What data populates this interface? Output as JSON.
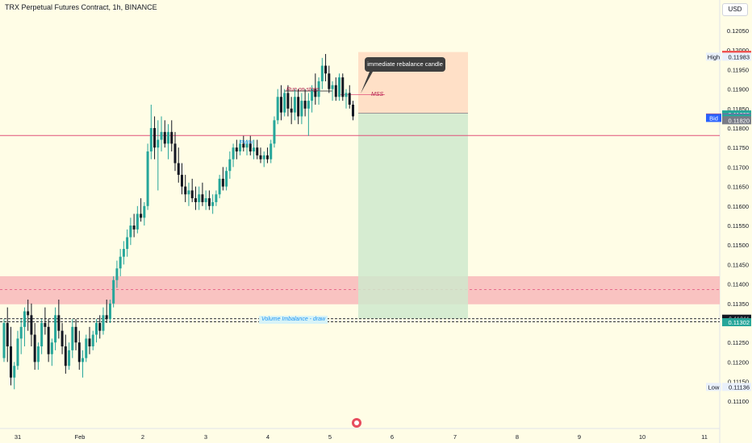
{
  "header": {
    "title": "TRX Perpetual Futures Contract, 1h, BINANCE",
    "currency": "USD"
  },
  "chart_data": {
    "type": "candlestick",
    "x_ticks": [
      "31",
      "Feb",
      "2",
      "3",
      "4",
      "5",
      "6",
      "7",
      "8",
      "9",
      "10",
      "11"
    ],
    "y_ticks": [
      "0.12050",
      "0.12000",
      "0.11950",
      "0.11900",
      "0.11850",
      "0.11800",
      "0.11750",
      "0.11700",
      "0.11650",
      "0.11600",
      "0.11550",
      "0.11500",
      "0.11450",
      "0.11400",
      "0.11350",
      "0.11300",
      "0.11250",
      "0.11200",
      "0.11150",
      "0.11100"
    ],
    "ylim": [
      0.1108,
      0.1208
    ],
    "price_tags": [
      {
        "label": "",
        "value": "0.11988",
        "color": "#ef5350"
      },
      {
        "label": "High",
        "value": "0.11983",
        "color": ""
      },
      {
        "label": "",
        "value": "0.11835",
        "color": "#26a69a"
      },
      {
        "label": "Ask",
        "value": "0.11827",
        "color": "#ef5350"
      },
      {
        "label": "Bid",
        "value": "0.11826",
        "color": "#2962ff"
      },
      {
        "label": "",
        "value": "0.11825",
        "color": "#26a69a"
      },
      {
        "label": "",
        "value": "0.11820",
        "color": "#787b86"
      },
      {
        "label": "",
        "value": "0.11311",
        "color": "#131722"
      },
      {
        "label": "",
        "value": "0.11303",
        "color": "#131722"
      },
      {
        "label": "",
        "value": "0.11302",
        "color": "#26a69a"
      },
      {
        "label": "Low",
        "value": "0.11136",
        "color": ""
      }
    ],
    "candles": [
      [
        0.1121,
        0.1131,
        0.112,
        0.113
      ],
      [
        0.113,
        0.1134,
        0.112,
        0.1124
      ],
      [
        0.1124,
        0.1129,
        0.1114,
        0.1116
      ],
      [
        0.1116,
        0.112,
        0.1113,
        0.1119
      ],
      [
        0.1119,
        0.1128,
        0.1118,
        0.1126
      ],
      [
        0.1126,
        0.1131,
        0.1122,
        0.1129
      ],
      [
        0.1129,
        0.1134,
        0.1124,
        0.1133
      ],
      [
        0.1133,
        0.1136,
        0.1128,
        0.1132
      ],
      [
        0.1132,
        0.1135,
        0.1124,
        0.1127
      ],
      [
        0.1127,
        0.113,
        0.1118,
        0.112
      ],
      [
        0.112,
        0.1125,
        0.1118,
        0.1124
      ],
      [
        0.1124,
        0.1131,
        0.1122,
        0.113
      ],
      [
        0.113,
        0.1134,
        0.1127,
        0.1129
      ],
      [
        0.1129,
        0.1131,
        0.112,
        0.1122
      ],
      [
        0.1122,
        0.1126,
        0.1119,
        0.1125
      ],
      [
        0.1125,
        0.1134,
        0.1123,
        0.1132
      ],
      [
        0.1132,
        0.1136,
        0.1126,
        0.1128
      ],
      [
        0.1128,
        0.113,
        0.1122,
        0.1124
      ],
      [
        0.1124,
        0.1127,
        0.1117,
        0.1119
      ],
      [
        0.1119,
        0.1125,
        0.1118,
        0.1123
      ],
      [
        0.1123,
        0.1131,
        0.1121,
        0.1129
      ],
      [
        0.1129,
        0.1131,
        0.1123,
        0.1125
      ],
      [
        0.1125,
        0.1128,
        0.1118,
        0.112
      ],
      [
        0.112,
        0.1123,
        0.1116,
        0.1121
      ],
      [
        0.1121,
        0.1127,
        0.112,
        0.1126
      ],
      [
        0.1126,
        0.1129,
        0.1122,
        0.1124
      ],
      [
        0.1124,
        0.1128,
        0.1123,
        0.1127
      ],
      [
        0.1127,
        0.1131,
        0.1125,
        0.113
      ],
      [
        0.113,
        0.1132,
        0.1126,
        0.1128
      ],
      [
        0.1128,
        0.1134,
        0.1127,
        0.1132
      ],
      [
        0.1132,
        0.1136,
        0.113,
        0.1131
      ],
      [
        0.1131,
        0.1136,
        0.113,
        0.1135
      ],
      [
        0.1135,
        0.1142,
        0.1134,
        0.1141
      ],
      [
        0.1141,
        0.1146,
        0.1139,
        0.1144
      ],
      [
        0.1144,
        0.1149,
        0.1142,
        0.1147
      ],
      [
        0.1147,
        0.1151,
        0.1145,
        0.1149
      ],
      [
        0.1149,
        0.1154,
        0.1147,
        0.1152
      ],
      [
        0.1152,
        0.1157,
        0.115,
        0.1155
      ],
      [
        0.1155,
        0.1158,
        0.1152,
        0.1154
      ],
      [
        0.1154,
        0.116,
        0.1153,
        0.1158
      ],
      [
        0.1158,
        0.1162,
        0.1156,
        0.1157
      ],
      [
        0.1157,
        0.1161,
        0.1155,
        0.116
      ],
      [
        0.116,
        0.1176,
        0.1159,
        0.1174
      ],
      [
        0.1174,
        0.1186,
        0.1172,
        0.118
      ],
      [
        0.118,
        0.1183,
        0.1172,
        0.1175
      ],
      [
        0.1175,
        0.1182,
        0.1164,
        0.1177
      ],
      [
        0.1177,
        0.1183,
        0.1174,
        0.1179
      ],
      [
        0.1179,
        0.1182,
        0.1175,
        0.1176
      ],
      [
        0.1176,
        0.1181,
        0.1172,
        0.1179
      ],
      [
        0.1179,
        0.1182,
        0.1174,
        0.1176
      ],
      [
        0.1176,
        0.1179,
        0.1169,
        0.1171
      ],
      [
        0.1171,
        0.1175,
        0.1166,
        0.1168
      ],
      [
        0.1168,
        0.1171,
        0.1163,
        0.1165
      ],
      [
        0.1165,
        0.1168,
        0.1161,
        0.1163
      ],
      [
        0.1163,
        0.1166,
        0.116,
        0.1164
      ],
      [
        0.1164,
        0.1167,
        0.1161,
        0.1162
      ],
      [
        0.1162,
        0.1165,
        0.1159,
        0.1161
      ],
      [
        0.1161,
        0.1165,
        0.1159,
        0.1163
      ],
      [
        0.1163,
        0.1166,
        0.116,
        0.1161
      ],
      [
        0.1161,
        0.1164,
        0.1159,
        0.1162
      ],
      [
        0.1162,
        0.1164,
        0.1159,
        0.116
      ],
      [
        0.116,
        0.1163,
        0.1158,
        0.1161
      ],
      [
        0.1161,
        0.1164,
        0.116,
        0.1163
      ],
      [
        0.1163,
        0.1168,
        0.1162,
        0.1167
      ],
      [
        0.1167,
        0.117,
        0.1164,
        0.1165
      ],
      [
        0.1165,
        0.117,
        0.1164,
        0.1169
      ],
      [
        0.1169,
        0.1174,
        0.1167,
        0.1172
      ],
      [
        0.1172,
        0.1176,
        0.117,
        0.1175
      ],
      [
        0.1175,
        0.1177,
        0.1172,
        0.1174
      ],
      [
        0.1174,
        0.1177,
        0.1173,
        0.1176
      ],
      [
        0.1176,
        0.1178,
        0.1174,
        0.1175
      ],
      [
        0.1175,
        0.1177,
        0.1173,
        0.1176
      ],
      [
        0.1176,
        0.1178,
        0.1173,
        0.1174
      ],
      [
        0.1174,
        0.1177,
        0.1172,
        0.1175
      ],
      [
        0.1175,
        0.1177,
        0.1172,
        0.1173
      ],
      [
        0.1173,
        0.1175,
        0.1171,
        0.1172
      ],
      [
        0.1172,
        0.1174,
        0.117,
        0.1173
      ],
      [
        0.1173,
        0.1175,
        0.1171,
        0.1172
      ],
      [
        0.1172,
        0.1177,
        0.1171,
        0.1176
      ],
      [
        0.1176,
        0.1183,
        0.1175,
        0.1182
      ],
      [
        0.1182,
        0.119,
        0.1181,
        0.1188
      ],
      [
        0.1188,
        0.1191,
        0.1182,
        0.1184
      ],
      [
        0.1184,
        0.119,
        0.1183,
        0.1189
      ],
      [
        0.1189,
        0.1191,
        0.1183,
        0.1185
      ],
      [
        0.1185,
        0.1188,
        0.1181,
        0.1184
      ],
      [
        0.1184,
        0.119,
        0.1182,
        0.1188
      ],
      [
        0.1188,
        0.119,
        0.1181,
        0.1183
      ],
      [
        0.1183,
        0.1189,
        0.1181,
        0.1187
      ],
      [
        0.1187,
        0.119,
        0.1183,
        0.1185
      ],
      [
        0.1185,
        0.1189,
        0.1178,
        0.1187
      ],
      [
        0.1187,
        0.1191,
        0.1184,
        0.119
      ],
      [
        0.119,
        0.1194,
        0.1186,
        0.1188
      ],
      [
        0.1188,
        0.1193,
        0.1186,
        0.1192
      ],
      [
        0.1192,
        0.1198,
        0.119,
        0.1196
      ],
      [
        0.1196,
        0.1199,
        0.1192,
        0.1194
      ],
      [
        0.1194,
        0.1196,
        0.1189,
        0.119
      ],
      [
        0.119,
        0.1192,
        0.1187,
        0.1191
      ],
      [
        0.1191,
        0.1193,
        0.1187,
        0.1188
      ],
      [
        0.1188,
        0.1194,
        0.1187,
        0.1193
      ],
      [
        0.1193,
        0.1194,
        0.1187,
        0.1188
      ],
      [
        0.1188,
        0.119,
        0.1185,
        0.1189
      ],
      [
        0.1189,
        0.1191,
        0.1185,
        0.1186
      ],
      [
        0.1186,
        0.1187,
        0.1182,
        0.1183
      ]
    ],
    "annotations": {
      "run_on_stops": "Run on stops",
      "mss": "MSS",
      "pwh": "PWH",
      "volume_imbalance": "Volume Imbalance - draw",
      "callout": "immediate rebalance candle"
    },
    "levels": {
      "pwh": 0.11781,
      "run_on_stops": 0.11895,
      "mss": 0.11886,
      "entry": 0.11838,
      "position_top": 0.11995,
      "position_bottom": 0.11311,
      "vi_upper": 0.11311,
      "vi_lower": 0.11303,
      "zone_top": 0.1142,
      "zone_mid": 0.11386,
      "zone_bottom": 0.11348
    },
    "colors": {
      "up": "#26a69a",
      "down": "#131722",
      "stop_zone": "#ffd8bf",
      "target_zone": "#cfe9cd",
      "supply_zone": "#f8b8ba",
      "pwh_line": "#e0507a"
    }
  }
}
